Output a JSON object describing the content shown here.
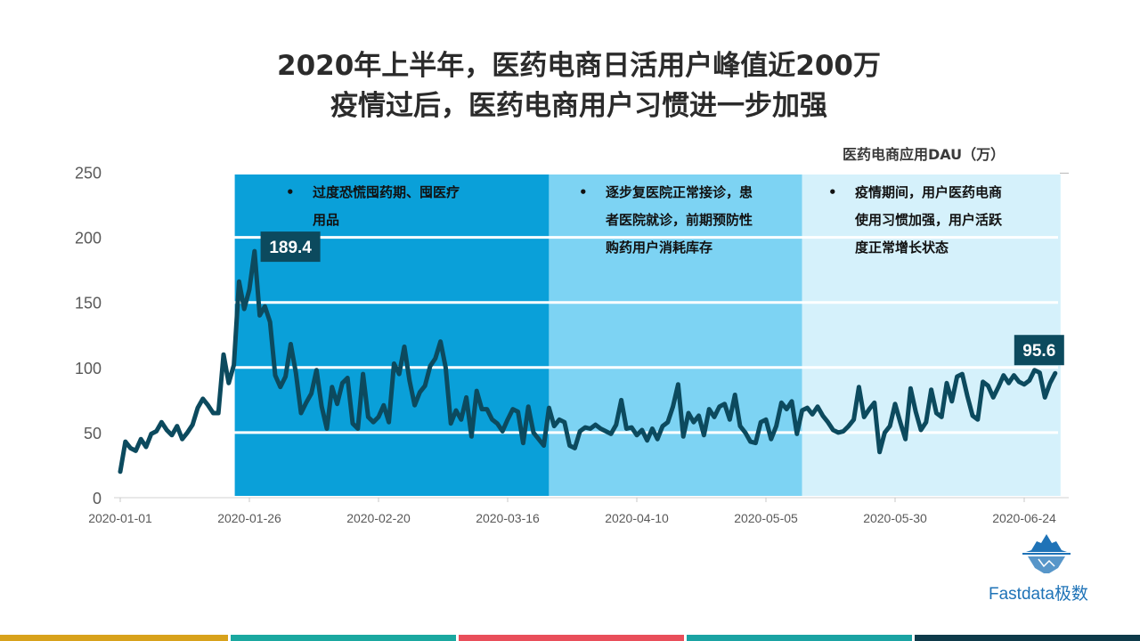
{
  "title": {
    "line1": "2020年上半年，医药电商日活用户峰值近200万",
    "line2": "疫情过后，医药电商用户习惯进一步加强"
  },
  "unit_label": "医药电商应用DAU（万）",
  "annotations": [
    {
      "text": "过度恐慌囤药期、囤医疗用品",
      "lines": [
        "过度恐慌囤药期、囤医疗",
        "用品"
      ]
    },
    {
      "text": "逐步复医院正常接诊，患者医院就诊，前期预防性购药用户消耗库存",
      "lines": [
        "逐步复医院正常接诊，患",
        "者医院就诊，前期预防性",
        "购药用户消耗库存"
      ]
    },
    {
      "text": "疫情期间，用户医药电商使用习惯加强，用户活跃度正常增长状态",
      "lines": [
        "疫情期间，用户医药电商",
        "使用习惯加强，用户活跃",
        "度正常增长状态"
      ]
    }
  ],
  "phase_colors": [
    "#0aa0d9",
    "#7dd3f3",
    "#d5f1fb"
  ],
  "line_color": "#0c4a5e",
  "logo": {
    "text": "Fastdata极数",
    "icon": "iceberg-icon"
  },
  "bottom_bar_colors": [
    "#d8a21b",
    "#1aa8a0",
    "#e94e5a",
    "#1aa3a3",
    "#0e3a4a"
  ],
  "chart_data": {
    "type": "line",
    "ylabel": "",
    "xlabel": "",
    "ylim": [
      0,
      250
    ],
    "yticks": [
      0,
      50,
      100,
      150,
      200,
      250
    ],
    "x_tick_labels": [
      "2020-01-01",
      "2020-01-26",
      "2020-02-20",
      "2020-03-16",
      "2020-04-10",
      "2020-05-05",
      "2020-05-30",
      "2020-06-24"
    ],
    "x_start": "2020-01-01",
    "x_end": "2020-06-30",
    "grid": "horizontal white lines at 50, 100, 150, 200",
    "phases": [
      {
        "from": "2020-01-23",
        "to": "2020-03-24"
      },
      {
        "from": "2020-03-24",
        "to": "2020-05-12"
      },
      {
        "from": "2020-05-12",
        "to": "2020-06-30"
      }
    ],
    "peak_label": {
      "date": "2020-01-28",
      "value": 189.4,
      "text": "189.4"
    },
    "end_label": {
      "date": "2020-06-30",
      "value": 95.6,
      "text": "95.6"
    },
    "series": [
      {
        "values": [
          20,
          43,
          38,
          36,
          45,
          39,
          49,
          51,
          58,
          52,
          48,
          55,
          45,
          50,
          56,
          69,
          76,
          71,
          65,
          65,
          110,
          88,
          102,
          166,
          145,
          160,
          189.4,
          140,
          147,
          135,
          94,
          85,
          93,
          118,
          96,
          65,
          73,
          80,
          98,
          70,
          53,
          85,
          72,
          88,
          92,
          57,
          53,
          95,
          62,
          58,
          62,
          71,
          58,
          103,
          95,
          116,
          90,
          71,
          81,
          86,
          101,
          107,
          120,
          100,
          57,
          67,
          60,
          77,
          47,
          82,
          68,
          68,
          60,
          57,
          51,
          60,
          68,
          66,
          42,
          70,
          50,
          45,
          40,
          69,
          55,
          60,
          58,
          40,
          38,
          51,
          54,
          53,
          56,
          53,
          51,
          49,
          56,
          75,
          53,
          54,
          48,
          52,
          44,
          53,
          45,
          55,
          58,
          70,
          87,
          47,
          65,
          58,
          63,
          48,
          68,
          62,
          70,
          72,
          60,
          79,
          55,
          50,
          43,
          42,
          58,
          60,
          45,
          55,
          73,
          68,
          74,
          49,
          67,
          69,
          64,
          70,
          63,
          58,
          52,
          50,
          51,
          55,
          60,
          85,
          62,
          68,
          73,
          35,
          50,
          55,
          72,
          58,
          45,
          84,
          66,
          52,
          58,
          83,
          65,
          62,
          88,
          74,
          93,
          95,
          78,
          63,
          60,
          89,
          86,
          77,
          85,
          94,
          88,
          94,
          89,
          87,
          90,
          98,
          96,
          77,
          88,
          95.6
        ]
      }
    ]
  }
}
